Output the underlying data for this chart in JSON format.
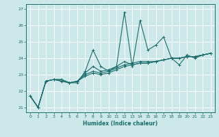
{
  "xlabel": "Humidex (Indice chaleur)",
  "ylabel": "",
  "bg_color": "#cce8e8",
  "line_color": "#1a6b6b",
  "grid_color": "#ffffff",
  "xlim": [
    -0.5,
    23.5
  ],
  "ylim": [
    20.7,
    27.3
  ],
  "yticks": [
    21,
    22,
    23,
    24,
    25,
    26,
    27
  ],
  "xticks": [
    0,
    1,
    2,
    3,
    4,
    5,
    6,
    7,
    8,
    9,
    10,
    11,
    12,
    13,
    14,
    15,
    16,
    17,
    18,
    19,
    20,
    21,
    22,
    23
  ],
  "lines": [
    [
      21.7,
      21.0,
      22.6,
      22.7,
      22.6,
      22.5,
      22.5,
      23.2,
      24.5,
      23.5,
      23.2,
      23.5,
      26.8,
      23.5,
      26.3,
      24.5,
      24.8,
      25.3,
      24.0,
      23.6,
      24.2,
      24.0,
      24.2,
      24.3
    ],
    [
      21.7,
      21.0,
      22.6,
      22.7,
      22.6,
      22.5,
      22.6,
      23.1,
      23.5,
      23.2,
      23.3,
      23.5,
      23.8,
      23.6,
      23.7,
      23.7,
      23.8,
      23.9,
      24.0,
      24.0,
      24.1,
      24.1,
      24.2,
      24.3
    ],
    [
      21.7,
      21.0,
      22.6,
      22.7,
      22.7,
      22.5,
      22.6,
      23.0,
      23.2,
      23.1,
      23.2,
      23.4,
      23.6,
      23.7,
      23.8,
      23.8,
      23.8,
      23.9,
      24.0,
      24.0,
      24.1,
      24.1,
      24.2,
      24.3
    ],
    [
      21.7,
      21.0,
      22.6,
      22.7,
      22.7,
      22.5,
      22.6,
      22.9,
      23.1,
      23.0,
      23.1,
      23.3,
      23.5,
      23.6,
      23.7,
      23.7,
      23.8,
      23.9,
      24.0,
      24.0,
      24.1,
      24.1,
      24.2,
      24.3
    ]
  ]
}
